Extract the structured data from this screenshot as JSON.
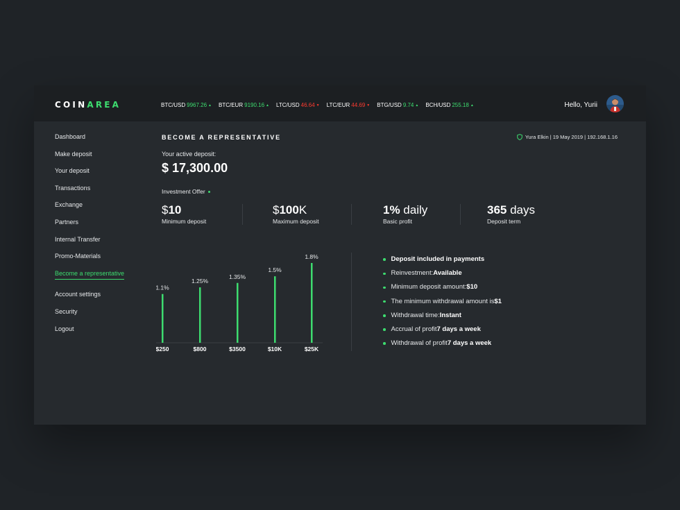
{
  "brand": {
    "part1": "COIN",
    "part2": "AREA"
  },
  "tickers": [
    {
      "pair": "BTC/USD",
      "price": "9967.26",
      "trend": "up"
    },
    {
      "pair": "BTC/EUR",
      "price": "9190.16",
      "trend": "up"
    },
    {
      "pair": "LTC/USD",
      "price": "46.64",
      "trend": "down"
    },
    {
      "pair": "LTC/EUR",
      "price": "44.69",
      "trend": "down"
    },
    {
      "pair": "BTG/USD",
      "price": "9.74",
      "trend": "up"
    },
    {
      "pair": "BCH/USD",
      "price": "255.18",
      "trend": "up"
    }
  ],
  "header": {
    "greeting": "Hello, Yurii"
  },
  "sidebar": {
    "items": [
      "Dashboard",
      "Make deposit",
      "Your deposit",
      "Transactions",
      "Exchange",
      "Partners",
      "Internal Transfer",
      "Promo-Materials",
      "Become a representative"
    ],
    "active": "Become a representative",
    "secondary": [
      "Account settings",
      "Security",
      "Logout"
    ]
  },
  "main": {
    "title": "BECOME A REPRESENTATIVE",
    "session": "Yura Elkin | 19 May 2019 | 192.168.1.16",
    "deposit_label": "Your active deposit:",
    "deposit_value": "$ 17,300.00",
    "offer_label": "Investment Offer"
  },
  "stats": [
    {
      "prefix": "$",
      "bold": "10",
      "suffix": "",
      "label": "Minimum deposit"
    },
    {
      "prefix": "$",
      "bold": "100",
      "suffix": "K",
      "label": "Maximum deposit"
    },
    {
      "prefix": "",
      "bold": "1%",
      "suffix": " daily",
      "label": "Basic profit"
    },
    {
      "prefix": "",
      "bold": "365",
      "suffix": " days",
      "label": "Deposit term"
    }
  ],
  "chart_data": {
    "type": "bar",
    "categories": [
      "$250",
      "$800",
      "$3500",
      "$10K",
      "$25K"
    ],
    "values": [
      1.1,
      1.25,
      1.35,
      1.5,
      1.8
    ],
    "value_labels": [
      "1.1%",
      "1.25%",
      "1.35%",
      "1.5%",
      "1.8%"
    ],
    "color": "#3ddc6f"
  },
  "features": [
    {
      "text": "Deposit included in payments",
      "bold": ""
    },
    {
      "text": "Reinvestment: ",
      "bold": "Available"
    },
    {
      "text": "Minimum deposit amount: ",
      "bold": "$10"
    },
    {
      "text": "The minimum withdrawal amount is ",
      "bold": "$1"
    },
    {
      "text": "Withdrawal time: ",
      "bold": "Instant"
    },
    {
      "text": "Accrual of profit ",
      "bold": "7 days a week"
    },
    {
      "text": "Withdrawal of profit ",
      "bold": "7 days a week"
    }
  ],
  "icons": {
    "up": "triangle-up-icon",
    "down": "triangle-down-icon",
    "shield": "shield-icon"
  },
  "colors": {
    "accent": "#3ddc6f",
    "negative": "#ff3b30",
    "panel": "#262a2e",
    "topbar": "#1c1f22"
  }
}
